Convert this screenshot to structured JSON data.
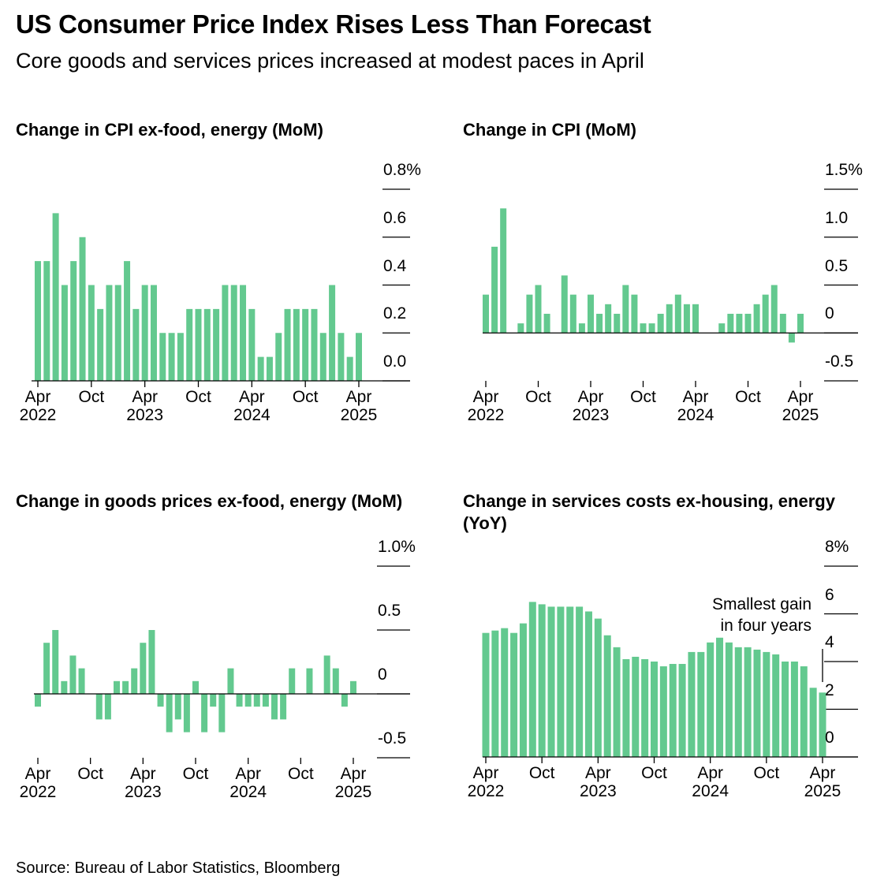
{
  "title": "US Consumer Price Index Rises Less Than Forecast",
  "subtitle": "Core goods and services prices increased at modest paces in April",
  "source": "Source: Bureau of Labor Statistics, Bloomberg",
  "chart_data": [
    {
      "type": "bar",
      "title": "Change in CPI ex-food, energy (MoM)",
      "color": "#63c98f",
      "categories": [
        "Apr 2022",
        null,
        null,
        null,
        null,
        null,
        "Oct",
        null,
        null,
        null,
        null,
        null,
        "Apr 2023",
        null,
        null,
        null,
        null,
        null,
        "Oct",
        null,
        null,
        null,
        null,
        null,
        "Apr 2024",
        null,
        null,
        null,
        null,
        null,
        "Oct",
        null,
        null,
        null,
        null,
        null,
        "Apr 2025"
      ],
      "values": [
        0.5,
        0.5,
        0.7,
        0.4,
        0.5,
        0.6,
        0.4,
        0.3,
        0.4,
        0.4,
        0.5,
        0.3,
        0.4,
        0.4,
        0.2,
        0.2,
        0.2,
        0.3,
        0.3,
        0.3,
        0.3,
        0.4,
        0.4,
        0.4,
        0.3,
        0.1,
        0.1,
        0.2,
        0.3,
        0.3,
        0.3,
        0.3,
        0.2,
        0.4,
        0.2,
        0.1,
        0.2
      ],
      "ylim": [
        0,
        0.8
      ],
      "yticks": [
        {
          "value": 0.8,
          "label": "0.8%"
        },
        0.6,
        0.4,
        0.2,
        {
          "value": 0,
          "label": "0.0"
        }
      ]
    },
    {
      "type": "bar",
      "title": "Change in CPI (MoM)",
      "color": "#63c98f",
      "categories": [
        "Apr 2022",
        null,
        null,
        null,
        null,
        null,
        "Oct",
        null,
        null,
        null,
        null,
        null,
        "Apr 2023",
        null,
        null,
        null,
        null,
        null,
        "Oct",
        null,
        null,
        null,
        null,
        null,
        "Apr 2024",
        null,
        null,
        null,
        null,
        null,
        "Oct",
        null,
        null,
        null,
        null,
        null,
        "Apr 2025"
      ],
      "values": [
        0.4,
        0.9,
        1.3,
        0.0,
        0.1,
        0.4,
        0.5,
        0.2,
        0.0,
        0.6,
        0.4,
        0.1,
        0.4,
        0.2,
        0.3,
        0.2,
        0.5,
        0.4,
        0.1,
        0.1,
        0.2,
        0.3,
        0.4,
        0.3,
        0.3,
        0.0,
        0.0,
        0.1,
        0.2,
        0.2,
        0.2,
        0.3,
        0.4,
        0.5,
        0.2,
        -0.1,
        0.2
      ],
      "ylim": [
        -0.5,
        1.5
      ],
      "yticks": [
        {
          "value": 1.5,
          "label": "1.5%"
        },
        {
          "value": 1,
          "label": "1.0"
        },
        0.5,
        0,
        -0.5
      ]
    },
    {
      "type": "bar",
      "title": "Change in goods prices ex-food, energy (MoM)",
      "color": "#63c98f",
      "categories": [
        "Apr 2022",
        null,
        null,
        null,
        null,
        null,
        "Oct",
        null,
        null,
        null,
        null,
        null,
        "Apr 2023",
        null,
        null,
        null,
        null,
        null,
        "Oct",
        null,
        null,
        null,
        null,
        null,
        "Apr 2024",
        null,
        null,
        null,
        null,
        null,
        "Oct",
        null,
        null,
        null,
        null,
        null,
        "Apr 2025"
      ],
      "values": [
        -0.1,
        0.4,
        0.5,
        0.1,
        0.3,
        0.2,
        0.0,
        -0.2,
        -0.2,
        0.1,
        0.1,
        0.2,
        0.4,
        0.5,
        -0.1,
        -0.3,
        -0.2,
        -0.3,
        0.1,
        -0.3,
        -0.1,
        -0.3,
        0.2,
        -0.1,
        -0.1,
        -0.1,
        -0.1,
        -0.2,
        -0.2,
        0.2,
        0.0,
        0.2,
        0.0,
        0.3,
        0.2,
        -0.1,
        0.1
      ],
      "ylim": [
        -0.5,
        1.0
      ],
      "yticks": [
        {
          "value": 1,
          "label": "1.0%"
        },
        0.5,
        0,
        -0.5
      ]
    },
    {
      "type": "bar",
      "title": "Change in services costs ex-housing, energy (YoY)",
      "color": "#63c98f",
      "categories": [
        "Apr 2022",
        null,
        null,
        null,
        null,
        null,
        "Oct",
        null,
        null,
        null,
        null,
        null,
        "Apr 2023",
        null,
        null,
        null,
        null,
        null,
        "Oct",
        null,
        null,
        null,
        null,
        null,
        "Apr 2024",
        null,
        null,
        null,
        null,
        null,
        "Oct",
        null,
        null,
        null,
        null,
        null,
        "Apr 2025"
      ],
      "values": [
        5.2,
        5.3,
        5.4,
        5.2,
        5.6,
        6.5,
        6.4,
        6.3,
        6.3,
        6.3,
        6.3,
        6.1,
        5.8,
        5.1,
        4.6,
        4.1,
        4.2,
        4.1,
        4.0,
        3.8,
        3.9,
        3.9,
        4.4,
        4.4,
        4.8,
        5.0,
        4.8,
        4.6,
        4.6,
        4.5,
        4.4,
        4.3,
        4.0,
        4.0,
        3.8,
        2.9,
        2.7
      ],
      "ylim": [
        0,
        8
      ],
      "yticks": [
        {
          "value": 8,
          "label": "8%"
        },
        6,
        4,
        2,
        0
      ],
      "annotation": [
        "Smallest gain",
        "in four years"
      ]
    }
  ]
}
